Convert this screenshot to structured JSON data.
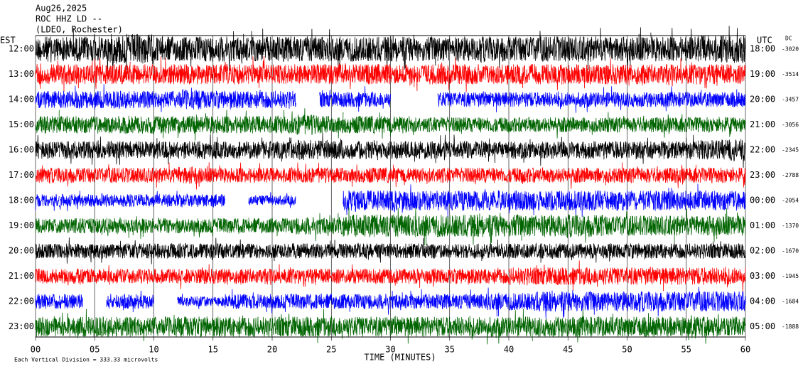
{
  "chart_data": {
    "type": "helicorder",
    "station": "Aug26,2025",
    "channel": "ROC HHZ LD --",
    "network": "(LDEO, Rochester)",
    "left_axis_label": "EST",
    "right_axis_label": "UTC",
    "dc_label": "DC",
    "x_label": "TIME (MINUTES)",
    "footer": "Each Vertical Division = 333.33 microvolts",
    "xlim": [
      0,
      60
    ],
    "xticks": [
      {
        "value": 0,
        "label": "00"
      },
      {
        "value": 5,
        "label": "05"
      },
      10,
      15,
      20,
      25,
      30,
      35,
      40,
      45,
      50,
      55,
      60
    ],
    "x": [
      0,
      2,
      4,
      6,
      8,
      10,
      12,
      14,
      16,
      18,
      20,
      22,
      24,
      26,
      28,
      30,
      32,
      34,
      36,
      38,
      40,
      42,
      44,
      46,
      48,
      50,
      52,
      54,
      56,
      58
    ],
    "rows": [
      {
        "est": "12:00",
        "utc": "18:00",
        "dc": -3020,
        "color": "#000000",
        "values": [
          0.5,
          0.5,
          0.5,
          0.6,
          0.6,
          0.5,
          0.5,
          0.5,
          0.5,
          0.5,
          0.5,
          0.5,
          0.5,
          0.5,
          0.5,
          0.5,
          0.5,
          0.5,
          0.5,
          0.5,
          0.5,
          0.5,
          0.5,
          0.5,
          0.5,
          0.5,
          0.5,
          0.5,
          0.55,
          0.55
        ]
      },
      {
        "est": "13:00",
        "utc": "19:00",
        "dc": -3514,
        "color": "#ff0000",
        "values": [
          0.4,
          0.4,
          0.4,
          0.4,
          0.4,
          0.4,
          0.4,
          0.4,
          0.4,
          0.4,
          0.4,
          0.4,
          0.4,
          0.4,
          0.4,
          0.4,
          0.4,
          0.4,
          0.4,
          0.4,
          0.4,
          0.4,
          0.4,
          0.4,
          0.4,
          0.4,
          0.4,
          0.4,
          0.4,
          0.4
        ]
      },
      {
        "est": "14:00",
        "utc": "20:00",
        "dc": -3457,
        "color": "#0000ff",
        "values": [
          0.35,
          0.35,
          0.35,
          0.35,
          0.35,
          0.35,
          0.4,
          0.35,
          0.35,
          0.35,
          0.35,
          null,
          0.3,
          0.3,
          0.3,
          null,
          null,
          0.3,
          0.3,
          0.3,
          0.3,
          0.3,
          0.3,
          0.3,
          0.3,
          0.3,
          0.3,
          0.3,
          0.3,
          0.3
        ]
      },
      {
        "est": "15:00",
        "utc": "21:00",
        "dc": -3056,
        "color": "#006400",
        "values": [
          0.35,
          0.35,
          0.35,
          0.35,
          0.35,
          0.35,
          0.35,
          0.35,
          0.35,
          0.35,
          0.35,
          0.4,
          0.35,
          0.35,
          0.35,
          0.35,
          0.3,
          0.3,
          0.3,
          0.3,
          0.3,
          0.3,
          0.3,
          0.3,
          0.3,
          0.3,
          0.3,
          0.3,
          0.3,
          0.3
        ]
      },
      {
        "est": "16:00",
        "utc": "22:00",
        "dc": -2345,
        "color": "#000000",
        "values": [
          0.35,
          0.35,
          0.35,
          0.35,
          0.35,
          0.35,
          0.35,
          0.35,
          0.35,
          0.35,
          0.35,
          0.4,
          0.4,
          0.35,
          0.35,
          0.35,
          0.35,
          0.35,
          0.35,
          0.35,
          0.35,
          0.35,
          0.35,
          0.35,
          0.35,
          0.35,
          0.35,
          0.35,
          0.4,
          0.45
        ]
      },
      {
        "est": "17:00",
        "utc": "23:00",
        "dc": -2788,
        "color": "#ff0000",
        "values": [
          0.3,
          0.3,
          0.3,
          0.3,
          0.3,
          0.3,
          0.35,
          0.3,
          0.3,
          0.3,
          0.3,
          0.3,
          0.3,
          0.3,
          0.3,
          0.3,
          0.3,
          0.3,
          0.3,
          0.3,
          0.3,
          0.3,
          0.3,
          0.3,
          0.3,
          0.3,
          0.3,
          0.3,
          0.3,
          0.3
        ]
      },
      {
        "est": "18:00",
        "utc": "00:00",
        "dc": -2054,
        "color": "#0000ff",
        "values": [
          0.25,
          0.25,
          0.25,
          0.25,
          0.25,
          0.25,
          0.25,
          0.25,
          null,
          0.2,
          0.2,
          null,
          null,
          0.4,
          0.4,
          0.4,
          0.4,
          0.4,
          0.4,
          0.4,
          0.4,
          0.4,
          0.4,
          0.4,
          0.4,
          0.4,
          0.4,
          0.4,
          0.4,
          0.4
        ]
      },
      {
        "est": "19:00",
        "utc": "01:00",
        "dc": -1370,
        "color": "#006400",
        "values": [
          0.3,
          0.3,
          0.3,
          0.3,
          0.3,
          0.3,
          0.3,
          0.3,
          0.3,
          0.3,
          0.3,
          0.35,
          0.35,
          0.45,
          0.45,
          0.45,
          0.45,
          0.45,
          0.45,
          0.45,
          0.45,
          0.45,
          0.45,
          0.45,
          0.4,
          0.4,
          0.4,
          0.4,
          0.4,
          0.4
        ]
      },
      {
        "est": "20:00",
        "utc": "02:00",
        "dc": -1670,
        "color": "#000000",
        "values": [
          0.3,
          0.3,
          0.3,
          0.3,
          0.3,
          0.3,
          0.3,
          0.3,
          0.3,
          0.3,
          0.3,
          0.3,
          0.3,
          0.3,
          0.3,
          0.3,
          0.3,
          0.3,
          0.3,
          0.3,
          0.3,
          0.3,
          0.3,
          0.3,
          0.3,
          0.3,
          0.3,
          0.3,
          0.3,
          0.3
        ]
      },
      {
        "est": "21:00",
        "utc": "03:00",
        "dc": -1945,
        "color": "#ff0000",
        "values": [
          0.3,
          0.3,
          0.3,
          0.3,
          0.3,
          0.3,
          0.3,
          0.3,
          0.3,
          0.3,
          0.3,
          0.3,
          0.3,
          0.3,
          0.3,
          0.3,
          0.3,
          0.3,
          0.3,
          0.3,
          0.35,
          0.35,
          0.35,
          0.35,
          0.35,
          0.35,
          0.35,
          0.35,
          0.35,
          0.35
        ]
      },
      {
        "est": "22:00",
        "utc": "04:00",
        "dc": -1684,
        "color": "#0000ff",
        "values": [
          0.3,
          0.3,
          null,
          0.3,
          0.3,
          null,
          0.2,
          0.2,
          0.3,
          0.3,
          0.3,
          0.3,
          0.3,
          0.3,
          0.3,
          0.3,
          0.3,
          0.3,
          0.3,
          0.35,
          0.35,
          0.4,
          0.4,
          0.4,
          0.4,
          0.4,
          0.4,
          0.4,
          0.4,
          0.4
        ]
      },
      {
        "est": "23:00",
        "utc": "05:00",
        "dc": -1888,
        "color": "#006400",
        "values": [
          0.4,
          0.4,
          0.4,
          0.4,
          0.4,
          0.4,
          0.4,
          0.4,
          0.4,
          0.4,
          0.4,
          0.4,
          0.4,
          0.4,
          0.4,
          0.4,
          0.4,
          0.4,
          0.4,
          0.4,
          0.4,
          0.4,
          0.4,
          0.4,
          0.4,
          0.4,
          0.4,
          0.4,
          0.4,
          0.4
        ]
      }
    ]
  }
}
